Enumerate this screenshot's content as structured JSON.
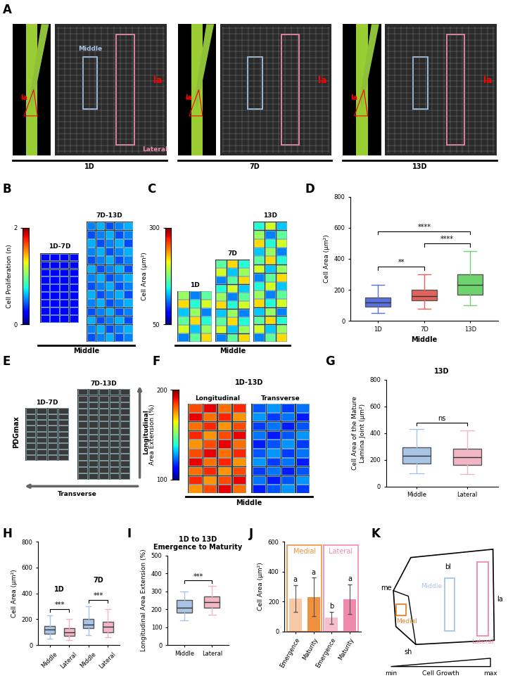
{
  "figure_panels": {
    "A": {
      "label": "A",
      "organ": "la",
      "regions": [
        "Middle",
        "Lateral"
      ],
      "stages": [
        "1D",
        "7D",
        "13D"
      ]
    },
    "B": {
      "label": "B",
      "colorbar": {
        "title": "Cell Proliferation (n)",
        "lim": [
          0,
          2
        ],
        "ticks": [
          0,
          2
        ]
      },
      "images": [
        "1D-7D",
        "7D-13D"
      ],
      "caption": "Middle"
    },
    "C": {
      "label": "C",
      "colorbar": {
        "title": "Cell Area (µm²)",
        "lim": [
          50,
          300
        ],
        "ticks": [
          50,
          300
        ]
      },
      "images": [
        "1D",
        "7D",
        "13D"
      ],
      "caption": "Middle"
    },
    "E": {
      "label": "E",
      "images": [
        "1D-7D",
        "7D-13D"
      ],
      "axis_title": "PDGmax",
      "directions": [
        "Longitudinal",
        "Transverse"
      ]
    },
    "F": {
      "label": "F",
      "colorbar": {
        "title": "Area Extension (%)",
        "lim": [
          100,
          200
        ],
        "ticks": [
          100,
          200
        ]
      },
      "title": "1D-13D",
      "images": [
        "Longitudinal",
        "Transverse"
      ],
      "caption": "Middle"
    },
    "K": {
      "label": "K",
      "parts": [
        "me",
        "bl",
        "sh",
        "la"
      ],
      "regions": [
        {
          "name": "Medial",
          "color": "#e8822e"
        },
        {
          "name": "Middle",
          "color": "#a9c4e6"
        },
        {
          "name": "Lateral",
          "color": "#f08aab"
        }
      ],
      "scale": {
        "title": "Cell Growth",
        "ends": [
          "min",
          "max"
        ]
      }
    }
  },
  "chart_data": [
    {
      "label": "D",
      "type": "box",
      "xlabel": "Middle",
      "ylabel": "Cell Area (µm²)",
      "categories": [
        "1D",
        "7D",
        "13D"
      ],
      "colors": [
        "#5a6fe0",
        "#e3625c",
        "#6dd46d"
      ],
      "stats": [
        {
          "whislo": 50,
          "q1": 90,
          "med": 120,
          "q3": 150,
          "whishi": 230
        },
        {
          "whislo": 80,
          "q1": 130,
          "med": 160,
          "q3": 200,
          "whishi": 300
        },
        {
          "whislo": 100,
          "q1": 170,
          "med": 230,
          "q3": 300,
          "whishi": 450
        }
      ],
      "ylim": [
        0,
        800
      ],
      "yticks": [
        0,
        200,
        400,
        600,
        800
      ],
      "comparisons": [
        {
          "pair": [
            0,
            1
          ],
          "label": "**"
        },
        {
          "pair": [
            1,
            2
          ],
          "label": "****"
        },
        {
          "pair": [
            0,
            2
          ],
          "label": "****"
        }
      ]
    },
    {
      "label": "G",
      "type": "box",
      "title": "13D",
      "ylabel": [
        "Cell Area of the Mature",
        "Lamina Joint (µm²)"
      ],
      "categories": [
        "Middle",
        "Lateral"
      ],
      "colors": [
        "#a9c4e6",
        "#f2b6c6"
      ],
      "stats": [
        {
          "whislo": 100,
          "q1": 170,
          "med": 230,
          "q3": 290,
          "whishi": 430
        },
        {
          "whislo": 90,
          "q1": 160,
          "med": 220,
          "q3": 280,
          "whishi": 420
        }
      ],
      "ylim": [
        0,
        800
      ],
      "yticks": [
        0,
        200,
        400,
        600,
        800
      ],
      "comparisons": [
        {
          "pair": [
            0,
            1
          ],
          "label": "ns"
        }
      ]
    },
    {
      "label": "H",
      "type": "box",
      "ylabel": "Cell Area (µm²)",
      "categories": [
        "Middle",
        "Lateral",
        "Middle",
        "Lateral"
      ],
      "colors": [
        "#a9c4e6",
        "#f2b6c6",
        "#a9c4e6",
        "#f2b6c6"
      ],
      "stats": [
        {
          "whislo": 50,
          "q1": 90,
          "med": 120,
          "q3": 150,
          "whishi": 230
        },
        {
          "whislo": 40,
          "q1": 70,
          "med": 100,
          "q3": 130,
          "whishi": 200
        },
        {
          "whislo": 80,
          "q1": 130,
          "med": 160,
          "q3": 200,
          "whishi": 300
        },
        {
          "whislo": 60,
          "q1": 100,
          "med": 140,
          "q3": 180,
          "whishi": 280
        }
      ],
      "groups": [
        {
          "name": "1D",
          "members": [
            0,
            1
          ]
        },
        {
          "name": "7D",
          "members": [
            2,
            3
          ]
        }
      ],
      "ylim": [
        0,
        800
      ],
      "yticks": [
        0,
        200,
        400,
        600,
        800
      ],
      "comparisons": [
        {
          "pair": [
            0,
            1
          ],
          "label": "***"
        },
        {
          "pair": [
            2,
            3
          ],
          "label": "***"
        }
      ]
    },
    {
      "label": "I",
      "type": "box",
      "title": [
        "1D to 13D",
        "Emergence to Maturity"
      ],
      "ylabel": "Longitudinal Area Extension (%)",
      "categories": [
        "Middle",
        "Lateral"
      ],
      "colors": [
        "#a9c4e6",
        "#f2b6c6"
      ],
      "stats": [
        {
          "whislo": 140,
          "q1": 180,
          "med": 210,
          "q3": 250,
          "whishi": 300
        },
        {
          "whislo": 170,
          "q1": 210,
          "med": 240,
          "q3": 270,
          "whishi": 330
        }
      ],
      "ylim": [
        0,
        500
      ],
      "yticks": [
        0,
        100,
        200,
        300,
        400,
        500
      ],
      "comparisons": [
        {
          "pair": [
            0,
            1
          ],
          "label": "***"
        }
      ]
    },
    {
      "label": "J",
      "type": "bar",
      "ylabel": "Cell Area (µm²)",
      "categories": [
        "Emergence",
        "Maturity",
        "Emergence",
        "Maturity"
      ],
      "values": [
        220,
        230,
        90,
        215
      ],
      "errors": [
        90,
        130,
        40,
        100
      ],
      "letters": [
        "a",
        "a",
        "b",
        "a"
      ],
      "colors": [
        "#f7c9a6",
        "#f0913f",
        "#f6bfd0",
        "#f08aab"
      ],
      "groups": [
        {
          "name": "Medial",
          "members": [
            0,
            1
          ],
          "color": "#f0913f"
        },
        {
          "name": "Lateral",
          "members": [
            2,
            3
          ],
          "color": "#f08aab"
        }
      ],
      "ylim": [
        0,
        600
      ],
      "yticks": [
        0,
        200,
        400,
        600
      ]
    }
  ]
}
